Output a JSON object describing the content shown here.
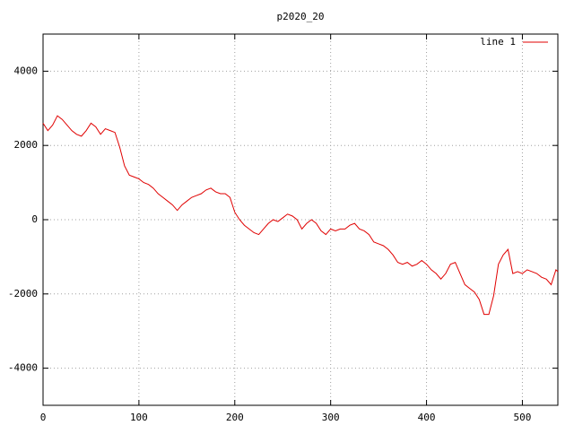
{
  "chart_data": {
    "type": "line",
    "title": "p2020_20",
    "x": [
      0,
      5,
      10,
      15,
      20,
      25,
      30,
      35,
      40,
      45,
      50,
      55,
      60,
      65,
      70,
      75,
      80,
      85,
      90,
      95,
      100,
      105,
      110,
      115,
      120,
      125,
      130,
      135,
      140,
      145,
      150,
      155,
      160,
      165,
      170,
      175,
      180,
      185,
      190,
      195,
      200,
      205,
      210,
      215,
      220,
      225,
      230,
      235,
      240,
      245,
      250,
      255,
      260,
      265,
      270,
      275,
      280,
      285,
      290,
      295,
      300,
      305,
      310,
      315,
      320,
      325,
      330,
      335,
      340,
      345,
      350,
      355,
      360,
      365,
      370,
      375,
      380,
      385,
      390,
      395,
      400,
      405,
      410,
      415,
      420,
      425,
      430,
      435,
      440,
      445,
      450,
      455,
      460,
      465,
      470,
      475,
      480,
      485,
      490,
      495,
      500,
      505,
      510,
      515,
      520,
      525,
      530,
      535,
      537
    ],
    "series": [
      {
        "name": "line 1",
        "color": "#e00000",
        "values": [
          2600,
          2400,
          2550,
          2800,
          2700,
          2550,
          2400,
          2300,
          2250,
          2400,
          2600,
          2500,
          2300,
          2450,
          2400,
          2350,
          1950,
          1450,
          1200,
          1150,
          1100,
          1000,
          950,
          850,
          700,
          600,
          500,
          400,
          250,
          400,
          500,
          600,
          650,
          700,
          800,
          850,
          750,
          700,
          700,
          600,
          200,
          0,
          -150,
          -250,
          -350,
          -400,
          -250,
          -100,
          0,
          -50,
          50,
          150,
          100,
          0,
          -250,
          -100,
          0,
          -100,
          -300,
          -400,
          -250,
          -300,
          -250,
          -250,
          -150,
          -100,
          -250,
          -300,
          -400,
          -600,
          -650,
          -700,
          -800,
          -950,
          -1150,
          -1200,
          -1150,
          -1250,
          -1200,
          -1100,
          -1200,
          -1350,
          -1450,
          -1600,
          -1450,
          -1200,
          -1150,
          -1450,
          -1750,
          -1850,
          -1950,
          -2150,
          -2550,
          -2550,
          -2050,
          -1200,
          -950,
          -800,
          -1450,
          -1400,
          -1450,
          -1350,
          -1400,
          -1450,
          -1550,
          -1600,
          -1750,
          -1350,
          -1400
        ]
      }
    ],
    "xlim": [
      0,
      537
    ],
    "ylim": [
      -5000,
      5000
    ],
    "xticks": [
      0,
      100,
      200,
      300,
      400,
      500
    ],
    "yticks": [
      -4000,
      -2000,
      0,
      2000,
      4000
    ],
    "grid": true,
    "legend": "top-right"
  }
}
